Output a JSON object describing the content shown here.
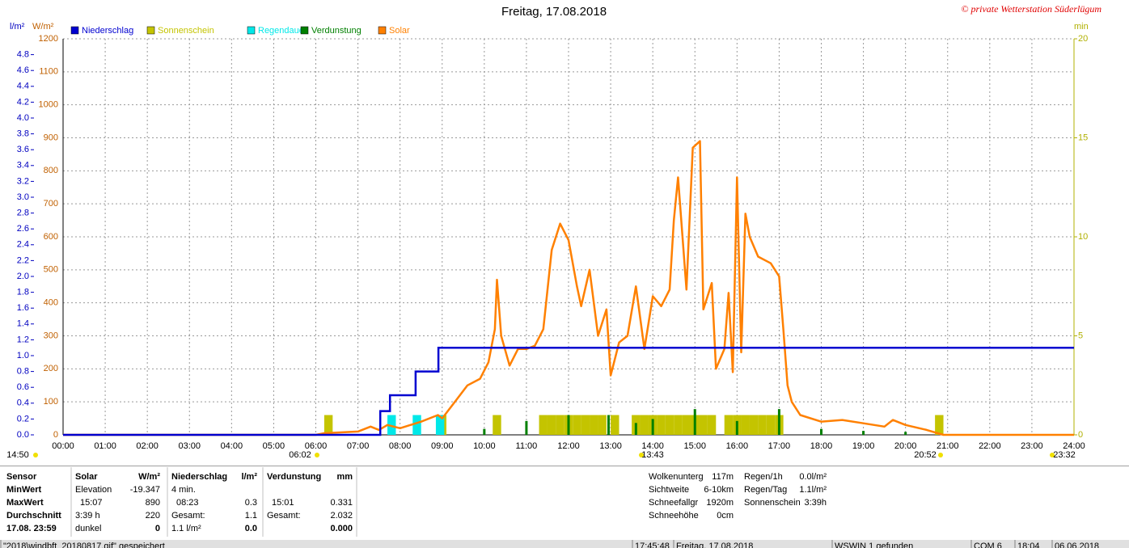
{
  "chart_data": {
    "type": "line",
    "title": "Freitag, 17.08.2018",
    "credit": "© private Wetterstation Süderlügum",
    "ylabel": "W/m²",
    "y2label": "l/m²",
    "y3label": "min",
    "xlim": [
      0,
      24
    ],
    "xticks": [
      {
        "value": 0,
        "label": "00:00"
      },
      {
        "value": 1,
        "label": "01:00"
      },
      {
        "value": 2,
        "label": "02:00"
      },
      {
        "value": 3,
        "label": "03:00"
      },
      {
        "value": 4,
        "label": "04:00"
      },
      {
        "value": 5,
        "label": "05:00"
      },
      {
        "value": 6,
        "label": "06:00"
      },
      {
        "value": 7,
        "label": "07:00"
      },
      {
        "value": 8,
        "label": "08:00"
      },
      {
        "value": 9,
        "label": "09:00"
      },
      {
        "value": 10,
        "label": "10:00"
      },
      {
        "value": 11,
        "label": "11:00"
      },
      {
        "value": 12,
        "label": "12:00"
      },
      {
        "value": 13,
        "label": "13:00"
      },
      {
        "value": 14,
        "label": "14:00"
      },
      {
        "value": 15,
        "label": "15:00"
      },
      {
        "value": 16,
        "label": "16:00"
      },
      {
        "value": 17,
        "label": "17:00"
      },
      {
        "value": 18,
        "label": "18:00"
      },
      {
        "value": 19,
        "label": "19:00"
      },
      {
        "value": 20,
        "label": "20:00"
      },
      {
        "value": 21,
        "label": "21:00"
      },
      {
        "value": 22,
        "label": "22:00"
      },
      {
        "value": 23,
        "label": "23:00"
      },
      {
        "value": 24,
        "label": "24:00"
      }
    ],
    "ylim": [
      0,
      1200
    ],
    "yticks": [
      0,
      100,
      200,
      300,
      400,
      500,
      600,
      700,
      800,
      900,
      1000,
      1100,
      1200
    ],
    "y2lim": [
      0,
      5
    ],
    "y2ticks": [
      {
        "value": 0,
        "label": "0.0"
      },
      0.2,
      0.4,
      0.6,
      0.8,
      {
        "value": 1,
        "label": "1.0"
      },
      1.2,
      1.4,
      1.6,
      1.8,
      {
        "value": 2,
        "label": "2.0"
      },
      2.2,
      2.4,
      2.6,
      2.8,
      {
        "value": 3,
        "label": "3.0"
      },
      3.2,
      3.4,
      3.6,
      3.8,
      {
        "value": 4,
        "label": "4.0"
      },
      4.2,
      4.4,
      4.6,
      4.8
    ],
    "y3lim": [
      0,
      20
    ],
    "y3ticks": [
      0,
      5,
      10,
      15,
      20
    ],
    "grid": true,
    "series": [
      {
        "name": "Niederschlag",
        "type": "step",
        "axis": "y2",
        "color": "#0000d0",
        "x": [
          0,
          7.53,
          7.53,
          7.76,
          7.76,
          8.37,
          8.37,
          8.91,
          8.91,
          24
        ],
        "values": [
          0,
          0,
          0.3,
          0.3,
          0.5,
          0.5,
          0.8,
          0.8,
          1.1,
          1.1
        ]
      },
      {
        "name": "Sonnenschein",
        "type": "bar",
        "axis": "y3",
        "color": "#c4c400",
        "x": [
          6.2,
          8.9,
          10.2,
          11.3,
          11.5,
          11.7,
          11.9,
          12.1,
          12.3,
          12.5,
          12.7,
          13.0,
          13.5,
          13.7,
          13.9,
          14.1,
          14.3,
          14.5,
          14.7,
          14.9,
          15.1,
          15.3,
          15.7,
          15.9,
          16.1,
          16.3,
          16.5,
          16.7,
          16.9,
          20.7
        ],
        "values": [
          1,
          1,
          1,
          1,
          1,
          1,
          1,
          1,
          1,
          1,
          1,
          1,
          1,
          1,
          1,
          1,
          1,
          1,
          1,
          1,
          1,
          1,
          1,
          1,
          1,
          1,
          1,
          1,
          1,
          1
        ]
      },
      {
        "name": "Regendauer",
        "type": "bar",
        "axis": "y3",
        "color": "#00e8e8",
        "x": [
          7.7,
          8.3,
          8.85
        ],
        "values": [
          1,
          1,
          1
        ]
      },
      {
        "name": "Verdunstung",
        "type": "spike",
        "axis": "y3",
        "color": "#008000",
        "x": [
          10.0,
          11.0,
          12.0,
          12.95,
          13.6,
          14.0,
          15.0,
          16.0,
          17.0,
          18.0,
          19.0,
          20.0
        ],
        "values": [
          0.3,
          0.7,
          1,
          1,
          0.6,
          0.8,
          1.3,
          0.7,
          1.3,
          0.3,
          0.2,
          0.15
        ]
      },
      {
        "name": "Solar",
        "type": "line",
        "color": "#ff8000",
        "x": [
          0,
          6.0,
          6.2,
          7.0,
          7.3,
          7.5,
          7.7,
          8.0,
          8.5,
          8.9,
          9.0,
          9.3,
          9.6,
          9.9,
          10.1,
          10.25,
          10.3,
          10.4,
          10.6,
          10.8,
          11.0,
          11.2,
          11.4,
          11.6,
          11.8,
          12.0,
          12.2,
          12.3,
          12.5,
          12.7,
          12.9,
          13.0,
          13.2,
          13.4,
          13.6,
          13.8,
          14.0,
          14.2,
          14.4,
          14.5,
          14.6,
          14.8,
          14.95,
          15.12,
          15.2,
          15.4,
          15.5,
          15.7,
          15.8,
          15.9,
          16.0,
          16.1,
          16.2,
          16.3,
          16.5,
          16.8,
          17.0,
          17.1,
          17.2,
          17.3,
          17.5,
          18.0,
          18.5,
          19.0,
          19.5,
          19.7,
          20.0,
          20.5,
          20.9,
          24
        ],
        "values": [
          0,
          0,
          5,
          10,
          25,
          15,
          30,
          20,
          40,
          60,
          50,
          100,
          150,
          170,
          220,
          320,
          470,
          300,
          210,
          260,
          260,
          270,
          320,
          560,
          640,
          590,
          450,
          390,
          500,
          300,
          380,
          180,
          280,
          300,
          450,
          260,
          420,
          390,
          440,
          650,
          780,
          440,
          870,
          890,
          380,
          460,
          200,
          260,
          430,
          190,
          780,
          250,
          670,
          600,
          540,
          520,
          480,
          320,
          150,
          100,
          60,
          40,
          45,
          35,
          25,
          45,
          30,
          15,
          0,
          0
        ]
      }
    ],
    "markers": [
      "14:50",
      "06:02",
      "13:43",
      "20:52",
      "23:32"
    ]
  },
  "stats": {
    "row_labels": [
      "Sensor",
      "MinWert",
      "MaxWert",
      "Durchschnitt",
      "17.08. 23:59"
    ],
    "blocks": [
      {
        "title": "Solar",
        "unit": "W/m²",
        "rows": [
          {
            "l": "Elevation",
            "r": "-19.347"
          },
          {
            "l": "15:07",
            "r": "890"
          },
          {
            "l": "3:39 h",
            "r": "220"
          },
          {
            "l": "dunkel",
            "r": "0"
          }
        ]
      },
      {
        "title": "Niederschlag",
        "unit": "l/m²",
        "rows": [
          {
            "l": "4 min."
          },
          {
            "l": "08:23",
            "r": "0.3"
          },
          {
            "l": "Gesamt:",
            "r": "1.1"
          },
          {
            "l": "1.1 l/m²",
            "r": "0.0"
          }
        ]
      },
      {
        "title": "Verdunstung",
        "unit": "mm",
        "rows": [
          {},
          {
            "l": "15:01",
            "r": "0.331"
          },
          {
            "l": "Gesamt:",
            "r": "2.032"
          },
          {
            "r": "0.000"
          }
        ]
      }
    ]
  },
  "info": {
    "left": [
      {
        "label": "Wolkenunterg",
        "value": "117m"
      },
      {
        "label": "Sichtweite",
        "value": "6-10km"
      },
      {
        "label": "Schneefallgr",
        "value": "1920m"
      },
      {
        "label": "Schneehöhe",
        "value": "0cm"
      }
    ],
    "right": [
      {
        "label": "Regen/1h",
        "value": "0.0l/m²"
      },
      {
        "label": "Regen/Tag",
        "value": "1.1l/m²"
      },
      {
        "label": "Sonnenschein",
        "value": "3:39h"
      }
    ]
  },
  "status_bar": [
    "\"2018\\windbft_20180817.gif\" gespeichert",
    "17:45:48",
    "Freitag, 17.08.2018",
    "WSWIN 1 gefunden",
    "COM 6",
    "18:04",
    "06.06.2018"
  ]
}
